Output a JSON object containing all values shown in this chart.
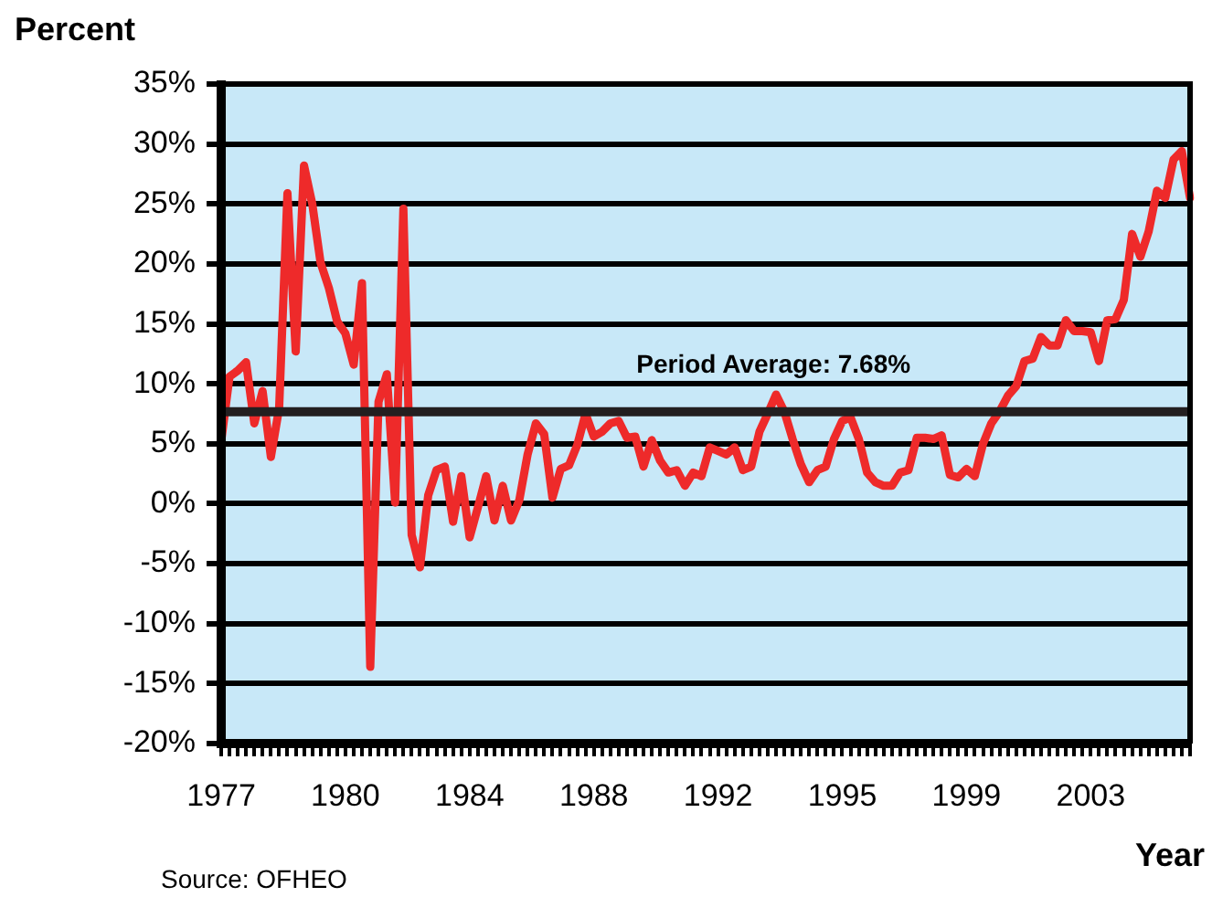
{
  "chart_data": {
    "type": "line",
    "ylabel": "Percent",
    "xlabel": "Year",
    "annotations": [
      "Source:  OFHEO"
    ],
    "categories": [
      "1977",
      null,
      null,
      null,
      null,
      null,
      null,
      null,
      null,
      null,
      null,
      null,
      null,
      null,
      null,
      "1980",
      null,
      null,
      null,
      null,
      null,
      null,
      null,
      null,
      null,
      null,
      null,
      null,
      null,
      null,
      "1984",
      null,
      null,
      null,
      null,
      null,
      null,
      null,
      null,
      null,
      null,
      null,
      null,
      null,
      null,
      "1988",
      null,
      null,
      null,
      null,
      null,
      null,
      null,
      null,
      null,
      null,
      null,
      null,
      null,
      null,
      "1992",
      null,
      null,
      null,
      null,
      null,
      null,
      null,
      null,
      null,
      null,
      null,
      null,
      null,
      null,
      "1995",
      null,
      null,
      null,
      null,
      null,
      null,
      null,
      null,
      null,
      null,
      null,
      null,
      null,
      null,
      "1999",
      null,
      null,
      null,
      null,
      null,
      null,
      null,
      null,
      null,
      null,
      null,
      null,
      null,
      null,
      "2003",
      null,
      null,
      null,
      null,
      null,
      null,
      null,
      null,
      null,
      null,
      null,
      null
    ],
    "series": [
      {
        "color": "#ee2a2a",
        "values": [
          5.2,
          10.6,
          11.1,
          11.8,
          6.7,
          9.4,
          3.9,
          8.0,
          25.9,
          12.7,
          28.2,
          25.0,
          20.1,
          18.0,
          15.2,
          14.2,
          11.6,
          18.4,
          -13.6,
          8.5,
          10.8,
          0.1,
          24.6,
          -2.6,
          -5.3,
          0.7,
          2.8,
          3.1,
          -1.5,
          2.3,
          -2.8,
          -0.3,
          2.3,
          -1.4,
          1.5,
          -1.4,
          0.3,
          4.1,
          6.7,
          5.8,
          0.5,
          2.9,
          3.2,
          4.9,
          7.5,
          5.6,
          6.0,
          6.7,
          6.9,
          5.5,
          5.6,
          3.1,
          5.3,
          3.6,
          2.6,
          2.8,
          1.5,
          2.6,
          2.3,
          4.7,
          4.4,
          4.1,
          4.7,
          2.8,
          3.1,
          6.0,
          7.5,
          9.1,
          7.7,
          5.4,
          3.3,
          1.8,
          2.8,
          3.1,
          5.4,
          6.9,
          7.2,
          5.4,
          2.6,
          1.8,
          1.5,
          1.5,
          2.6,
          2.8,
          5.5,
          5.5,
          5.4,
          5.7,
          2.4,
          2.2,
          2.9,
          2.3,
          5.0,
          6.7,
          7.7,
          9.0,
          9.8,
          11.9,
          12.1,
          13.9,
          13.2,
          13.2,
          15.3,
          14.4,
          14.4,
          14.3,
          11.9,
          15.3,
          15.4,
          17.0,
          22.5,
          20.6,
          22.7,
          26.1,
          25.5,
          28.7,
          29.4,
          25.5
        ]
      }
    ],
    "ylim": [
      -20,
      35
    ],
    "yticks": [
      {
        "value": -20,
        "label": "-20%"
      },
      {
        "value": -15,
        "label": "-15%"
      },
      {
        "value": -10,
        "label": "-10%"
      },
      {
        "value": -5,
        "label": "-5%"
      },
      {
        "value": 0,
        "label": "0%"
      },
      {
        "value": 5,
        "label": "5%"
      },
      {
        "value": 10,
        "label": "10%"
      },
      {
        "value": 15,
        "label": "15%"
      },
      {
        "value": 20,
        "label": "20%"
      },
      {
        "value": 25,
        "label": "25%"
      },
      {
        "value": 30,
        "label": "30%"
      },
      {
        "value": 35,
        "label": "35%"
      }
    ],
    "ref_lines": [
      {
        "axis": "y",
        "value": 7.68,
        "label": "Period Average: 7.68%",
        "color": "#231f20"
      }
    ],
    "grid": "y",
    "legend": false,
    "marker": "none",
    "line_style": "solid"
  }
}
